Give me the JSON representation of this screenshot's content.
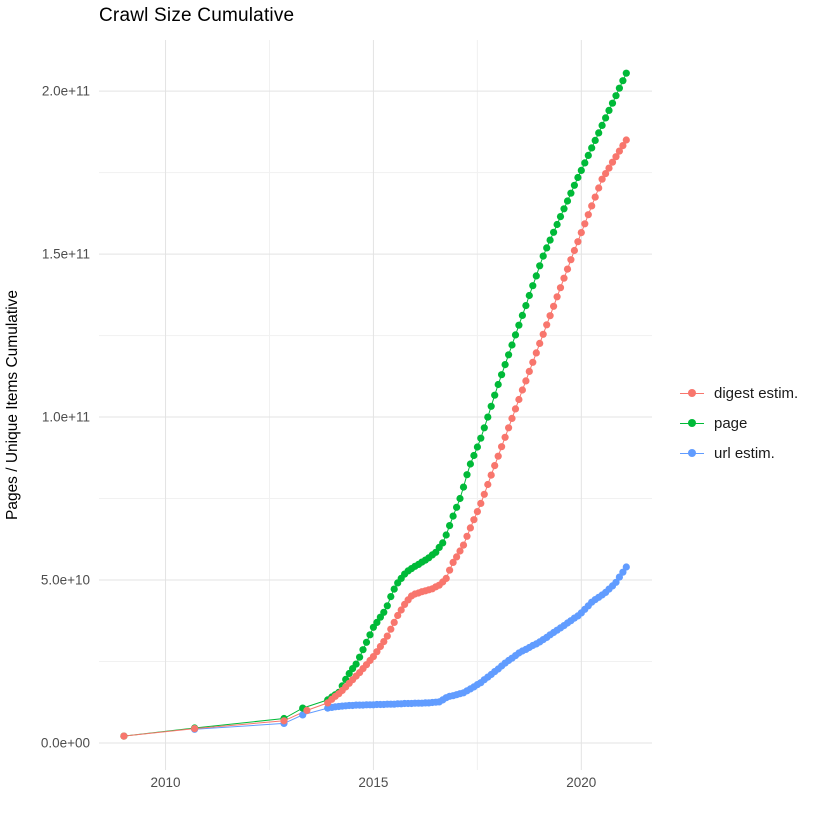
{
  "title": "Crawl Size Cumulative",
  "axes": {
    "y_title": "Pages / Unique Items Cumulative",
    "x_tick_labels": [
      "2010",
      "2015",
      "2020"
    ],
    "y_tick_labels": [
      "0.0e+00",
      "5.0e+10",
      "1.0e+11",
      "1.5e+11",
      "2.0e+11"
    ]
  },
  "legend": {
    "items": [
      {
        "label": "digest estim."
      },
      {
        "label": "page"
      },
      {
        "label": "url estim."
      }
    ]
  },
  "chart_data": {
    "type": "scatter",
    "title": "Crawl Size Cumulative",
    "xlabel": "",
    "ylabel": "Pages / Unique Items Cumulative",
    "grid": true,
    "legend_position": "right",
    "background": "#ffffff",
    "grid_major_color": "#E3E3E3",
    "grid_minor_color": "#F1F1F1",
    "x_domain": [
      2008.4,
      2021.7
    ],
    "y_domain": [
      -0.83,
      21.57
    ],
    "y_unit": "1e10 items (e.g. 20.55 = 2.055e+11)",
    "x_major_ticks": [
      {
        "v": 2010,
        "label": "2010"
      },
      {
        "v": 2015,
        "label": "2015"
      },
      {
        "v": 2020,
        "label": "2020"
      }
    ],
    "x_minor_ticks": [
      2012.5,
      2017.5
    ],
    "y_major_ticks": [
      {
        "v": 0,
        "label": "0.0e+00"
      },
      {
        "v": 5,
        "label": "5.0e+10"
      },
      {
        "v": 10,
        "label": "1.0e+11"
      },
      {
        "v": 15,
        "label": "1.5e+11"
      },
      {
        "v": 20,
        "label": "2.0e+11"
      }
    ],
    "y_minor_ticks": [
      2.5,
      7.5,
      12.5,
      17.5
    ],
    "series": [
      {
        "name": "digest estim.",
        "color": "#F8766D",
        "points": [
          [
            2009.0,
            0.21
          ],
          [
            2010.7,
            0.44
          ],
          [
            2012.85,
            0.68
          ],
          [
            2013.4,
            1.0
          ],
          [
            2013.9,
            1.23
          ],
          [
            2014.0,
            1.34
          ],
          [
            2014.083,
            1.43
          ],
          [
            2014.167,
            1.51
          ],
          [
            2014.25,
            1.61
          ],
          [
            2014.333,
            1.72
          ],
          [
            2014.417,
            1.83
          ],
          [
            2014.5,
            1.94
          ],
          [
            2014.583,
            2.05
          ],
          [
            2014.667,
            2.16
          ],
          [
            2014.75,
            2.28
          ],
          [
            2014.833,
            2.4
          ],
          [
            2014.917,
            2.53
          ],
          [
            2015.0,
            2.65
          ],
          [
            2015.083,
            2.8
          ],
          [
            2015.167,
            2.96
          ],
          [
            2015.25,
            3.11
          ],
          [
            2015.333,
            3.28
          ],
          [
            2015.417,
            3.49
          ],
          [
            2015.5,
            3.7
          ],
          [
            2015.583,
            3.91
          ],
          [
            2015.667,
            4.08
          ],
          [
            2015.75,
            4.25
          ],
          [
            2015.833,
            4.39
          ],
          [
            2015.917,
            4.51
          ],
          [
            2016.0,
            4.57
          ],
          [
            2016.083,
            4.6
          ],
          [
            2016.167,
            4.64
          ],
          [
            2016.25,
            4.67
          ],
          [
            2016.333,
            4.7
          ],
          [
            2016.417,
            4.73
          ],
          [
            2016.5,
            4.79
          ],
          [
            2016.583,
            4.84
          ],
          [
            2016.667,
            4.94
          ],
          [
            2016.75,
            5.05
          ],
          [
            2016.833,
            5.3
          ],
          [
            2016.917,
            5.54
          ],
          [
            2017.0,
            5.71
          ],
          [
            2017.083,
            5.89
          ],
          [
            2017.167,
            6.07
          ],
          [
            2017.25,
            6.34
          ],
          [
            2017.333,
            6.6
          ],
          [
            2017.417,
            6.85
          ],
          [
            2017.5,
            7.1
          ],
          [
            2017.583,
            7.35
          ],
          [
            2017.667,
            7.63
          ],
          [
            2017.75,
            7.93
          ],
          [
            2017.833,
            8.22
          ],
          [
            2017.917,
            8.51
          ],
          [
            2018.0,
            8.8
          ],
          [
            2018.083,
            9.09
          ],
          [
            2018.167,
            9.38
          ],
          [
            2018.25,
            9.67
          ],
          [
            2018.333,
            9.96
          ],
          [
            2018.417,
            10.25
          ],
          [
            2018.5,
            10.54
          ],
          [
            2018.583,
            10.83
          ],
          [
            2018.667,
            11.11
          ],
          [
            2018.75,
            11.4
          ],
          [
            2018.833,
            11.68
          ],
          [
            2018.917,
            11.97
          ],
          [
            2019.0,
            12.26
          ],
          [
            2019.083,
            12.54
          ],
          [
            2019.167,
            12.83
          ],
          [
            2019.25,
            13.11
          ],
          [
            2019.333,
            13.4
          ],
          [
            2019.417,
            13.69
          ],
          [
            2019.5,
            13.97
          ],
          [
            2019.583,
            14.26
          ],
          [
            2019.667,
            14.54
          ],
          [
            2019.75,
            14.83
          ],
          [
            2019.833,
            15.11
          ],
          [
            2019.917,
            15.38
          ],
          [
            2020.0,
            15.66
          ],
          [
            2020.083,
            15.93
          ],
          [
            2020.167,
            16.21
          ],
          [
            2020.25,
            16.48
          ],
          [
            2020.333,
            16.75
          ],
          [
            2020.417,
            17.03
          ],
          [
            2020.5,
            17.3
          ],
          [
            2020.583,
            17.47
          ],
          [
            2020.667,
            17.64
          ],
          [
            2020.75,
            17.82
          ],
          [
            2020.833,
            17.99
          ],
          [
            2020.917,
            18.16
          ],
          [
            2021.0,
            18.33
          ],
          [
            2021.083,
            18.5
          ]
        ]
      },
      {
        "name": "page",
        "color": "#00BA38",
        "points": [
          [
            2009.0,
            0.21
          ],
          [
            2010.7,
            0.46
          ],
          [
            2012.85,
            0.75
          ],
          [
            2013.3,
            1.07
          ],
          [
            2013.9,
            1.32
          ],
          [
            2014.0,
            1.41
          ],
          [
            2014.083,
            1.48
          ],
          [
            2014.167,
            1.55
          ],
          [
            2014.25,
            1.75
          ],
          [
            2014.333,
            1.95
          ],
          [
            2014.417,
            2.13
          ],
          [
            2014.5,
            2.28
          ],
          [
            2014.583,
            2.42
          ],
          [
            2014.667,
            2.63
          ],
          [
            2014.75,
            2.86
          ],
          [
            2014.833,
            3.09
          ],
          [
            2014.917,
            3.32
          ],
          [
            2015.0,
            3.55
          ],
          [
            2015.083,
            3.7
          ],
          [
            2015.167,
            3.86
          ],
          [
            2015.25,
            4.01
          ],
          [
            2015.333,
            4.21
          ],
          [
            2015.417,
            4.49
          ],
          [
            2015.5,
            4.72
          ],
          [
            2015.583,
            4.91
          ],
          [
            2015.667,
            5.05
          ],
          [
            2015.75,
            5.18
          ],
          [
            2015.833,
            5.28
          ],
          [
            2015.917,
            5.35
          ],
          [
            2016.0,
            5.42
          ],
          [
            2016.083,
            5.48
          ],
          [
            2016.167,
            5.55
          ],
          [
            2016.25,
            5.61
          ],
          [
            2016.333,
            5.68
          ],
          [
            2016.417,
            5.77
          ],
          [
            2016.5,
            5.85
          ],
          [
            2016.583,
            6.0
          ],
          [
            2016.667,
            6.14
          ],
          [
            2016.75,
            6.38
          ],
          [
            2016.833,
            6.67
          ],
          [
            2016.917,
            6.96
          ],
          [
            2017.0,
            7.23
          ],
          [
            2017.083,
            7.5
          ],
          [
            2017.167,
            7.85
          ],
          [
            2017.25,
            8.23
          ],
          [
            2017.333,
            8.56
          ],
          [
            2017.417,
            8.82
          ],
          [
            2017.5,
            9.08
          ],
          [
            2017.583,
            9.35
          ],
          [
            2017.667,
            9.67
          ],
          [
            2017.75,
            10.0
          ],
          [
            2017.833,
            10.33
          ],
          [
            2017.917,
            10.67
          ],
          [
            2018.0,
            11.0
          ],
          [
            2018.083,
            11.3
          ],
          [
            2018.167,
            11.61
          ],
          [
            2018.25,
            11.91
          ],
          [
            2018.333,
            12.21
          ],
          [
            2018.417,
            12.52
          ],
          [
            2018.5,
            12.82
          ],
          [
            2018.583,
            13.12
          ],
          [
            2018.667,
            13.42
          ],
          [
            2018.75,
            13.73
          ],
          [
            2018.833,
            14.03
          ],
          [
            2018.917,
            14.33
          ],
          [
            2019.0,
            14.64
          ],
          [
            2019.083,
            14.94
          ],
          [
            2019.167,
            15.19
          ],
          [
            2019.25,
            15.43
          ],
          [
            2019.333,
            15.67
          ],
          [
            2019.417,
            15.91
          ],
          [
            2019.5,
            16.15
          ],
          [
            2019.583,
            16.39
          ],
          [
            2019.667,
            16.63
          ],
          [
            2019.75,
            16.87
          ],
          [
            2019.833,
            17.11
          ],
          [
            2019.917,
            17.35
          ],
          [
            2020.0,
            17.57
          ],
          [
            2020.083,
            17.8
          ],
          [
            2020.167,
            18.03
          ],
          [
            2020.25,
            18.26
          ],
          [
            2020.333,
            18.49
          ],
          [
            2020.417,
            18.72
          ],
          [
            2020.5,
            18.95
          ],
          [
            2020.583,
            19.18
          ],
          [
            2020.667,
            19.41
          ],
          [
            2020.75,
            19.63
          ],
          [
            2020.833,
            19.86
          ],
          [
            2020.917,
            20.09
          ],
          [
            2021.0,
            20.32
          ],
          [
            2021.083,
            20.55
          ]
        ]
      },
      {
        "name": "url estim.",
        "color": "#619CFF",
        "points": [
          [
            2010.7,
            0.42
          ],
          [
            2012.85,
            0.6
          ],
          [
            2013.3,
            0.86
          ],
          [
            2013.9,
            1.07
          ],
          [
            2014.0,
            1.09
          ],
          [
            2014.083,
            1.11
          ],
          [
            2014.167,
            1.12
          ],
          [
            2014.25,
            1.13
          ],
          [
            2014.333,
            1.14
          ],
          [
            2014.417,
            1.15
          ],
          [
            2014.5,
            1.15
          ],
          [
            2014.583,
            1.16
          ],
          [
            2014.667,
            1.16
          ],
          [
            2014.75,
            1.16
          ],
          [
            2014.833,
            1.17
          ],
          [
            2014.917,
            1.17
          ],
          [
            2015.0,
            1.17
          ],
          [
            2015.083,
            1.18
          ],
          [
            2015.167,
            1.18
          ],
          [
            2015.25,
            1.18
          ],
          [
            2015.333,
            1.19
          ],
          [
            2015.417,
            1.19
          ],
          [
            2015.5,
            1.19
          ],
          [
            2015.583,
            1.2
          ],
          [
            2015.667,
            1.2
          ],
          [
            2015.75,
            1.21
          ],
          [
            2015.833,
            1.21
          ],
          [
            2015.917,
            1.21
          ],
          [
            2016.0,
            1.22
          ],
          [
            2016.083,
            1.22
          ],
          [
            2016.167,
            1.22
          ],
          [
            2016.25,
            1.23
          ],
          [
            2016.333,
            1.23
          ],
          [
            2016.417,
            1.24
          ],
          [
            2016.5,
            1.25
          ],
          [
            2016.583,
            1.26
          ],
          [
            2016.667,
            1.32
          ],
          [
            2016.75,
            1.39
          ],
          [
            2016.833,
            1.43
          ],
          [
            2016.917,
            1.45
          ],
          [
            2017.0,
            1.48
          ],
          [
            2017.083,
            1.51
          ],
          [
            2017.167,
            1.54
          ],
          [
            2017.25,
            1.6
          ],
          [
            2017.333,
            1.66
          ],
          [
            2017.417,
            1.72
          ],
          [
            2017.5,
            1.79
          ],
          [
            2017.583,
            1.85
          ],
          [
            2017.667,
            1.94
          ],
          [
            2017.75,
            2.02
          ],
          [
            2017.833,
            2.1
          ],
          [
            2017.917,
            2.19
          ],
          [
            2018.0,
            2.27
          ],
          [
            2018.083,
            2.36
          ],
          [
            2018.167,
            2.45
          ],
          [
            2018.25,
            2.53
          ],
          [
            2018.333,
            2.6
          ],
          [
            2018.417,
            2.68
          ],
          [
            2018.5,
            2.76
          ],
          [
            2018.583,
            2.82
          ],
          [
            2018.667,
            2.87
          ],
          [
            2018.75,
            2.93
          ],
          [
            2018.833,
            2.99
          ],
          [
            2018.917,
            3.04
          ],
          [
            2019.0,
            3.1
          ],
          [
            2019.083,
            3.17
          ],
          [
            2019.167,
            3.24
          ],
          [
            2019.25,
            3.32
          ],
          [
            2019.333,
            3.39
          ],
          [
            2019.417,
            3.46
          ],
          [
            2019.5,
            3.53
          ],
          [
            2019.583,
            3.6
          ],
          [
            2019.667,
            3.68
          ],
          [
            2019.75,
            3.75
          ],
          [
            2019.833,
            3.83
          ],
          [
            2019.917,
            3.9
          ],
          [
            2020.0,
            3.99
          ],
          [
            2020.083,
            4.1
          ],
          [
            2020.167,
            4.21
          ],
          [
            2020.25,
            4.32
          ],
          [
            2020.333,
            4.4
          ],
          [
            2020.417,
            4.47
          ],
          [
            2020.5,
            4.54
          ],
          [
            2020.583,
            4.62
          ],
          [
            2020.667,
            4.72
          ],
          [
            2020.75,
            4.82
          ],
          [
            2020.833,
            4.93
          ],
          [
            2020.917,
            5.09
          ],
          [
            2021.0,
            5.24
          ],
          [
            2021.083,
            5.4
          ]
        ]
      }
    ]
  }
}
